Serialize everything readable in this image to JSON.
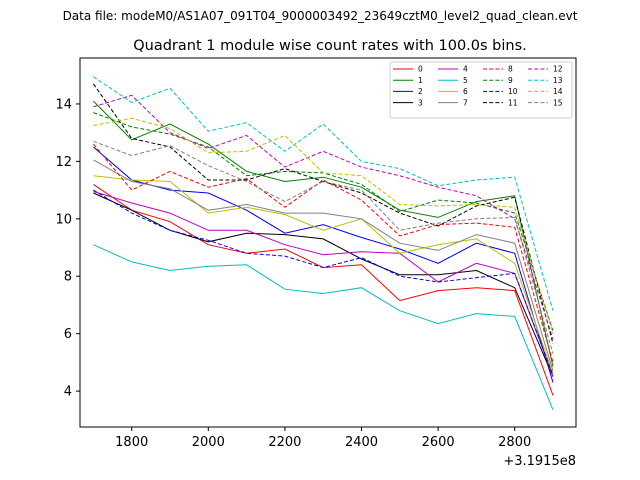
{
  "chart_data": {
    "type": "line",
    "suptitle": "Data file: modeM0/AS1A07_091T04_9000003492_23649cztM0_level2_quad_clean.evt",
    "title": "Quadrant 1 module wise count rates with 100.0s bins.",
    "xlabel": "",
    "ylabel": "",
    "x_offset_label": "+3.1915e8",
    "xlim": [
      1665,
      2960
    ],
    "ylim": [
      2.75,
      15.6
    ],
    "xticks": [
      1800,
      2000,
      2200,
      2400,
      2600,
      2800
    ],
    "xtick_labels": [
      "1800",
      "2000",
      "2200",
      "2400",
      "2600",
      "2800"
    ],
    "yticks": [
      4,
      6,
      8,
      10,
      12,
      14
    ],
    "ytick_labels": [
      "4",
      "6",
      "8",
      "10",
      "12",
      "14"
    ],
    "grid": false,
    "legend_position": "top-right",
    "legend_columns": 4,
    "x": [
      1700,
      1800,
      1900,
      2000,
      2100,
      2200,
      2300,
      2400,
      2500,
      2600,
      2700,
      2800,
      2900
    ],
    "series": [
      {
        "name": "0",
        "color": "#ff0000",
        "dash": "solid",
        "values": [
          11.2,
          10.3,
          9.9,
          9.1,
          8.8,
          8.95,
          8.3,
          8.4,
          7.15,
          7.5,
          7.6,
          7.5,
          3.85
        ]
      },
      {
        "name": "1",
        "color": "#008000",
        "dash": "solid",
        "values": [
          14.1,
          12.75,
          13.3,
          12.6,
          11.65,
          11.3,
          11.45,
          11.1,
          10.3,
          10.05,
          10.6,
          10.8,
          4.85
        ]
      },
      {
        "name": "2",
        "color": "#0000ff",
        "dash": "solid",
        "values": [
          12.5,
          11.35,
          11.0,
          10.9,
          10.3,
          9.5,
          9.8,
          9.35,
          8.95,
          8.45,
          9.15,
          8.8,
          4.3
        ]
      },
      {
        "name": "3",
        "color": "#000000",
        "dash": "solid",
        "values": [
          10.9,
          10.3,
          9.6,
          9.2,
          9.5,
          9.45,
          9.3,
          8.6,
          8.05,
          8.05,
          8.2,
          7.6,
          4.5
        ]
      },
      {
        "name": "4",
        "color": "#bf00bf",
        "dash": "solid",
        "values": [
          10.95,
          10.55,
          10.2,
          9.6,
          9.6,
          9.1,
          8.75,
          8.85,
          8.8,
          7.8,
          8.45,
          8.1,
          4.5
        ]
      },
      {
        "name": "5",
        "color": "#00bfbf",
        "dash": "solid",
        "values": [
          9.1,
          8.5,
          8.2,
          8.35,
          8.4,
          7.55,
          7.4,
          7.6,
          6.8,
          6.35,
          6.7,
          6.6,
          3.35
        ]
      },
      {
        "name": "6",
        "color": "#bfbf00",
        "dash": "solid",
        "values": [
          11.5,
          11.35,
          11.3,
          10.2,
          10.4,
          10.15,
          9.6,
          10.0,
          8.8,
          9.1,
          9.3,
          8.45,
          4.6
        ]
      },
      {
        "name": "7",
        "color": "#808080",
        "dash": "solid",
        "values": [
          12.05,
          11.3,
          11.05,
          10.3,
          10.5,
          10.2,
          10.2,
          10.0,
          9.15,
          8.9,
          9.45,
          9.15,
          4.7
        ]
      },
      {
        "name": "8",
        "color": "#ff0000",
        "dash": "dashed",
        "values": [
          12.6,
          11.0,
          11.65,
          11.1,
          11.4,
          10.4,
          11.35,
          10.65,
          9.4,
          9.8,
          9.85,
          9.7,
          5.0
        ]
      },
      {
        "name": "9",
        "color": "#008000",
        "dash": "dashed",
        "values": [
          13.7,
          13.2,
          12.95,
          12.5,
          11.5,
          11.65,
          11.6,
          11.2,
          10.25,
          10.65,
          10.55,
          10.2,
          6.1
        ]
      },
      {
        "name": "10",
        "color": "#0000ff",
        "dash": "dashed",
        "values": [
          11.0,
          10.2,
          9.6,
          9.25,
          8.8,
          8.7,
          8.3,
          8.65,
          8.0,
          7.8,
          7.95,
          8.1,
          4.55
        ]
      },
      {
        "name": "11",
        "color": "#000000",
        "dash": "dashed",
        "values": [
          14.7,
          12.8,
          12.5,
          11.35,
          11.35,
          11.75,
          11.3,
          10.9,
          10.2,
          9.75,
          10.45,
          10.75,
          5.65
        ]
      },
      {
        "name": "12",
        "color": "#bf00bf",
        "dash": "dashed",
        "values": [
          13.9,
          14.3,
          13.0,
          12.45,
          12.9,
          11.8,
          12.35,
          11.8,
          11.5,
          11.1,
          10.8,
          10.0,
          5.8
        ]
      },
      {
        "name": "13",
        "color": "#00bfbf",
        "dash": "dashed",
        "values": [
          14.95,
          14.05,
          14.55,
          13.05,
          13.35,
          12.35,
          13.3,
          12.0,
          11.75,
          11.15,
          11.35,
          11.45,
          6.8
        ]
      },
      {
        "name": "14",
        "color": "#bfbf00",
        "dash": "dashed",
        "values": [
          13.25,
          13.5,
          13.15,
          12.3,
          12.35,
          12.9,
          11.6,
          11.5,
          10.5,
          10.45,
          10.5,
          10.4,
          6.0
        ]
      },
      {
        "name": "15",
        "color": "#808080",
        "dash": "dashed",
        "values": [
          12.7,
          12.2,
          12.55,
          11.85,
          11.3,
          10.6,
          11.3,
          11.0,
          9.6,
          9.85,
          10.0,
          10.05,
          5.3
        ]
      }
    ]
  }
}
